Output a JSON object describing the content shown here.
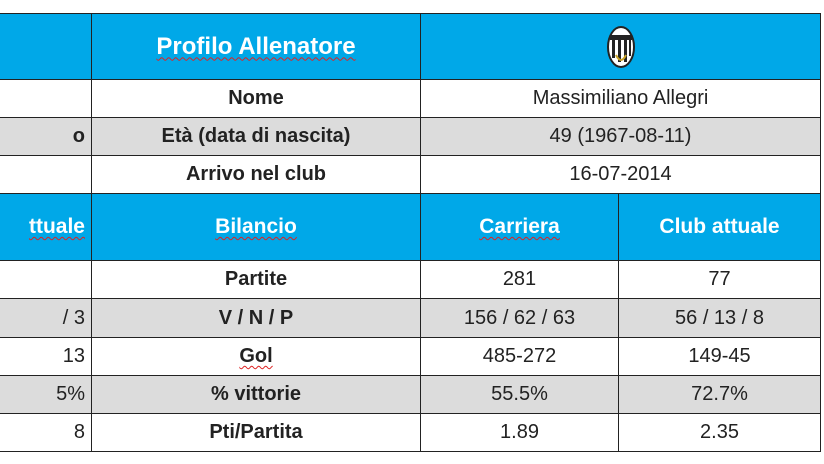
{
  "header": {
    "title": "Profilo Allenatore",
    "logo": "juventus-crest"
  },
  "profile": [
    {
      "left": "",
      "label": "Nome",
      "value": "Massimiliano Allegri"
    },
    {
      "left": "o",
      "label": "Età (data di nascita)",
      "value": "49 (1967-08-11)"
    },
    {
      "left": "",
      "label": "Arrivo nel club",
      "value": "16-07-2014"
    }
  ],
  "stats_header": {
    "left": "ttuale",
    "label": "Bilancio",
    "career": "Carriera",
    "club": "Club attuale"
  },
  "stats": [
    {
      "left": "",
      "label": "Partite",
      "career": "281",
      "club": "77"
    },
    {
      "left": "/ 3",
      "label": "V / N / P",
      "career": "156 / 62 / 63",
      "club": "56 / 13 / 8"
    },
    {
      "left": "13",
      "label": "Gol",
      "career": "485-272",
      "club": "149-45"
    },
    {
      "left": "5%",
      "label": "% vittorie",
      "career": "55.5%",
      "club": "72.7%"
    },
    {
      "left": "8",
      "label": "Pti/Partita",
      "career": "1.89",
      "club": "2.35"
    }
  ],
  "colors": {
    "header_blue": "#00a8e8",
    "row_grey": "#dcdcdc"
  }
}
